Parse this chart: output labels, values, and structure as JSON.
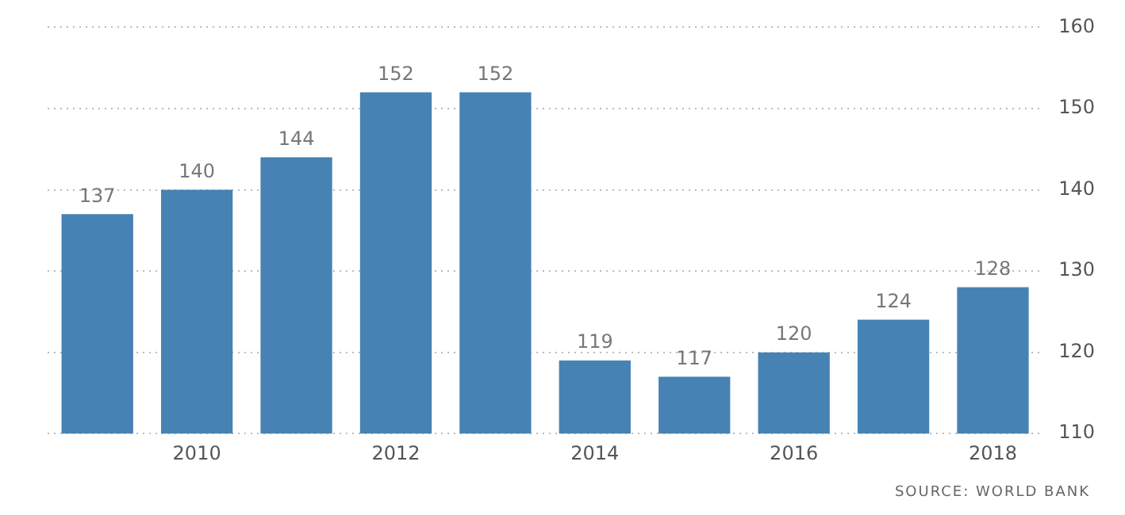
{
  "chart_data": {
    "type": "bar",
    "categories": [
      null,
      "2010",
      null,
      "2012",
      null,
      "2014",
      null,
      "2016",
      null,
      "2018"
    ],
    "values": [
      137,
      140,
      144,
      152,
      152,
      119,
      117,
      120,
      124,
      128
    ],
    "color": "#4682b4",
    "ylim": [
      110,
      160
    ],
    "yticks": [
      110,
      120,
      130,
      140,
      150,
      160
    ],
    "grid": "y",
    "data_labels": true,
    "legend": false,
    "annotations": [
      "SOURCE: WORLD BANK"
    ]
  }
}
